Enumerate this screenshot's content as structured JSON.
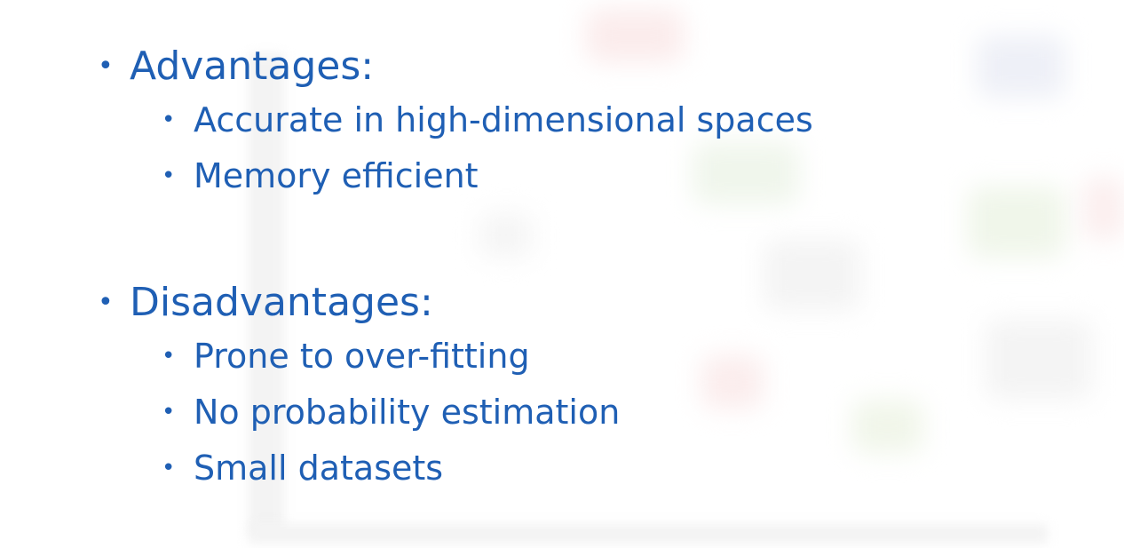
{
  "slide": {
    "sections": [
      {
        "heading": "Advantages:",
        "items": [
          "Accurate in high-dimensional spaces",
          "Memory efficient"
        ]
      },
      {
        "heading": "Disadvantages:",
        "items": [
          "Prone to over-fitting",
          "No probability estimation",
          "Small datasets"
        ]
      }
    ],
    "bullet_glyph": "•",
    "colors": {
      "text": "#1f5fb4",
      "background": "#ffffff"
    }
  }
}
